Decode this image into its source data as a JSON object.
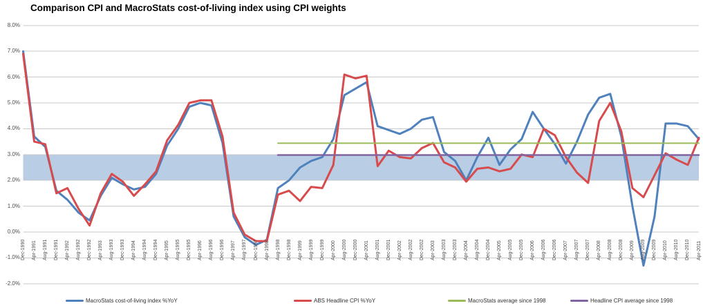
{
  "title": "Comparison CPI and MacroStats cost-of-living index using CPI weights",
  "chart_data": {
    "type": "line",
    "title": "Comparison CPI and MacroStats cost-of-living index using CPI weights",
    "xlabel": "",
    "ylabel": "",
    "ylim": [
      -2,
      8
    ],
    "ytick_step": 1,
    "grid": true,
    "legend_position": "bottom",
    "ytick_labels": [
      "8.0%",
      "7.0%",
      "6.0%",
      "5.0%",
      "4.0%",
      "3.0%",
      "2.0%",
      "1.0%",
      "0.0%",
      "-1.0%",
      "-2.0%"
    ],
    "band": {
      "from": 2.0,
      "to": 3.0,
      "color": "#B9CDE5",
      "name": "2-3% band"
    },
    "categories": [
      "Dec-1990",
      "Apr-1991",
      "Aug-1991",
      "Dec-1991",
      "Apr-1992",
      "Aug-1992",
      "Dec-1992",
      "Apr-1993",
      "Aug-1993",
      "Dec-1993",
      "Apr-1994",
      "Aug-1994",
      "Dec-1994",
      "Apr-1995",
      "Aug-1995",
      "Dec-1995",
      "Apr-1996",
      "Aug-1996",
      "Dec-1996",
      "Apr-1997",
      "Aug-1997",
      "Dec-1997",
      "Apr-1998",
      "Aug-1998",
      "Dec-1998",
      "Apr-1999",
      "Aug-1999",
      "Dec-1999",
      "Apr-2000",
      "Aug-2000",
      "Dec-2000",
      "Apr-2001",
      "Aug-2001",
      "Dec-2001",
      "Apr-2002",
      "Aug-2002",
      "Dec-2002",
      "Apr-2003",
      "Aug-2003",
      "Dec-2003",
      "Apr-2004",
      "Aug-2004",
      "Dec-2004",
      "Apr-2005",
      "Aug-2005",
      "Dec-2005",
      "Apr-2006",
      "Aug-2006",
      "Dec-2006",
      "Apr-2007",
      "Aug-2007",
      "Dec-2007",
      "Apr-2008",
      "Aug-2008",
      "Dec-2008",
      "Apr-2009",
      "Aug-2009",
      "Dec-2009",
      "Apr-2010",
      "Aug-2010",
      "Dec-2010",
      "Apr-2011"
    ],
    "series": [
      {
        "name": "MacroStats cost-of-living index %YoY",
        "kind": "data",
        "color": "#4F81BD",
        "width": 3,
        "values": [
          7.0,
          3.7,
          3.3,
          1.6,
          1.25,
          0.75,
          0.45,
          1.4,
          2.1,
          1.85,
          1.65,
          1.75,
          2.25,
          3.35,
          4.0,
          4.85,
          5.0,
          4.9,
          3.45,
          0.6,
          -0.2,
          -0.5,
          -0.3,
          1.7,
          2.0,
          2.5,
          2.75,
          2.9,
          3.6,
          5.3,
          5.55,
          5.8,
          4.1,
          3.95,
          3.8,
          4.0,
          4.35,
          4.45,
          3.1,
          2.75,
          2.0,
          2.9,
          3.65,
          2.6,
          3.2,
          3.6,
          4.65,
          4.0,
          3.4,
          2.65,
          3.5,
          4.55,
          5.2,
          5.35,
          3.7,
          1.0,
          -1.3,
          0.6,
          4.2,
          4.2,
          4.1,
          3.6
        ]
      },
      {
        "name": "ABS Headline CPI %YoY",
        "kind": "data",
        "color": "#D84B4D",
        "width": 3,
        "values": [
          6.9,
          3.5,
          3.4,
          1.5,
          1.7,
          0.9,
          0.25,
          1.5,
          2.25,
          1.95,
          1.4,
          1.85,
          2.35,
          3.55,
          4.15,
          5.0,
          5.1,
          5.1,
          3.7,
          0.75,
          -0.1,
          -0.35,
          -0.35,
          1.45,
          1.6,
          1.2,
          1.75,
          1.7,
          2.6,
          6.1,
          5.95,
          6.05,
          2.55,
          3.15,
          2.9,
          2.85,
          3.25,
          3.45,
          2.7,
          2.5,
          1.95,
          2.45,
          2.5,
          2.35,
          2.45,
          3.0,
          2.9,
          4.0,
          3.75,
          2.9,
          2.3,
          1.9,
          4.3,
          5.0,
          3.9,
          1.7,
          1.35,
          2.2,
          3.05,
          2.8,
          2.6,
          3.65
        ]
      },
      {
        "name": "MacroStats average since 1998",
        "kind": "average",
        "color": "#9BBB59",
        "width": 2,
        "value": 3.44,
        "start_category": "Aug-1998"
      },
      {
        "name": "Headline CPI average since 1998",
        "kind": "average",
        "color": "#8064A2",
        "width": 2.5,
        "value": 2.98,
        "start_category": "Aug-1998"
      }
    ]
  }
}
